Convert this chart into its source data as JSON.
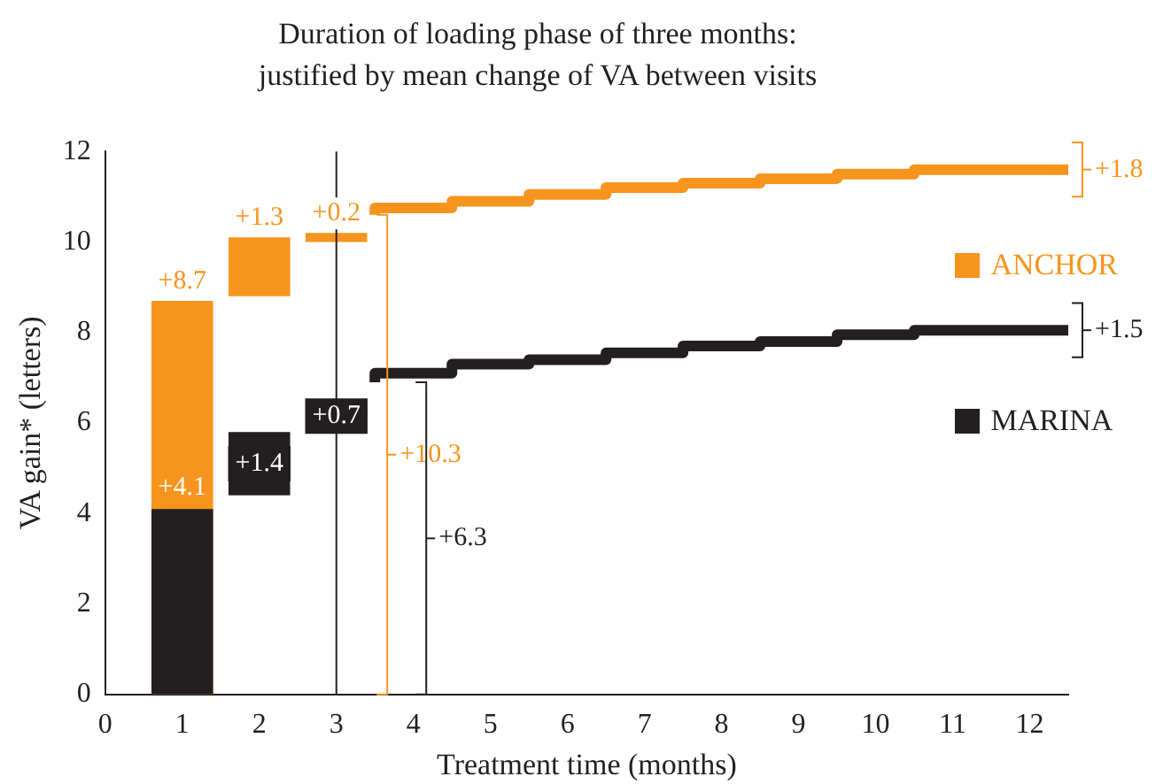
{
  "chart_data": {
    "type": "bar",
    "title": "Duration of loading phase of three months:\njustified by mean change of VA between visits",
    "xlabel": "Treatment time (months)",
    "ylabel": "VA gain* (letters)",
    "xlim": [
      0,
      12.5
    ],
    "xticks": [
      0,
      1,
      2,
      3,
      4,
      5,
      6,
      7,
      8,
      9,
      10,
      11,
      12
    ],
    "ylim": [
      0,
      12
    ],
    "yticks": [
      0,
      2,
      4,
      6,
      8,
      10,
      12
    ],
    "grid": false,
    "legend": "right",
    "series": [
      {
        "name": "ANCHOR",
        "color": "#f7941d",
        "x": [
          1,
          2,
          3
        ],
        "base": [
          0,
          8.8,
          10.0
        ],
        "values": [
          8.7,
          1.3,
          0.2
        ],
        "value_labels": [
          "+8.7",
          "+1.3",
          "+0.2"
        ]
      },
      {
        "type": "step",
        "color": "#f7941d",
        "x": [
          3.5,
          4.5,
          5.5,
          6.5,
          7.5,
          8.5,
          9.5,
          10.5,
          11.5,
          12.5
        ],
        "values": [
          10.6,
          10.75,
          10.9,
          11.05,
          11.2,
          11.3,
          11.4,
          11.5,
          11.6,
          11.6
        ]
      },
      {
        "name": "MARINA",
        "color": "#231f20",
        "x": [
          1,
          2,
          3
        ],
        "base": [
          0,
          4.4,
          5.8
        ],
        "values": [
          4.1,
          1.4,
          0.7
        ],
        "value_labels": [
          "+4.1",
          "+1.4",
          "+0.7"
        ]
      },
      {
        "type": "step",
        "color": "#231f20",
        "x": [
          3.5,
          4.5,
          5.5,
          6.5,
          7.5,
          8.5,
          9.5,
          10.5,
          11.5,
          12.5
        ],
        "values": [
          6.9,
          7.1,
          7.3,
          7.4,
          7.55,
          7.7,
          7.8,
          7.95,
          8.05,
          8.05
        ]
      }
    ],
    "ref_lines": [
      {
        "axis": "x",
        "value": 3,
        "color": "#231f20"
      }
    ],
    "annotations": [
      "+10.3",
      "+6.3",
      "+1.8",
      "+1.5"
    ]
  }
}
